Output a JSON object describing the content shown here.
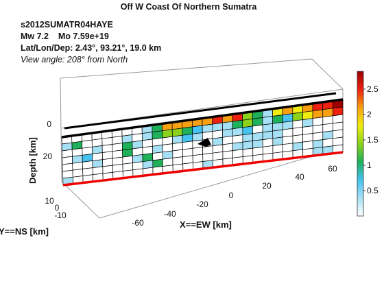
{
  "chart_data": {
    "type": "heatmap",
    "title": "Off W Coast Of Northern Sumatra",
    "event_lines": [
      "s2012SUMATR04HAYE",
      "Mw 7.2    Mo 7.59e+19",
      "Lat/Lon/Dep: 2.43°, 93.21°, 19.0 km",
      "View angle: 208° from North"
    ],
    "xlabel": "X==EW [km]",
    "ylabel": "Y==NS [km]",
    "zlabel": "Depth [km]",
    "xticks": [
      "-60",
      "-40",
      "-20",
      "0",
      "20",
      "40",
      "60"
    ],
    "yticks": [
      "10",
      "0",
      "-10"
    ],
    "zticks": [
      "0",
      "20"
    ],
    "colorbar_ticks": [
      "2.5",
      "2",
      "1.5",
      "1",
      "0.5"
    ],
    "colorbar_range": [
      0,
      2.85
    ],
    "colormap": [
      "#ffffff",
      "#a6e0f5",
      "#45c2f0",
      "#1fb05a",
      "#8cd21c",
      "#f0ec10",
      "#f7a010",
      "#ee2010",
      "#9b0000"
    ],
    "grid_cols": 28,
    "grid_rows": 7,
    "slip": [
      [
        0,
        0,
        0,
        0,
        0,
        0,
        0,
        0,
        0.4,
        1.1,
        2.0,
        2.2,
        2.2,
        2.3,
        2.3,
        2.4,
        2.2,
        2.4,
        1.6,
        1.1,
        0.4,
        1.7,
        2.0,
        1.9,
        2.2,
        2.4,
        2.5,
        2.7
      ],
      [
        0.3,
        1.0,
        0,
        0,
        0,
        0,
        0.4,
        0,
        0.3,
        1.2,
        1.4,
        1.6,
        1.2,
        0.6,
        0.4,
        0.5,
        0.3,
        1.2,
        1.6,
        1.2,
        0.4,
        1.0,
        0.6,
        1.5,
        1.7,
        2.1,
        2.3,
        2.4
      ],
      [
        0,
        0,
        0,
        0.3,
        0,
        0,
        1.0,
        0.3,
        0,
        0,
        0,
        0.3,
        0.6,
        0.3,
        0,
        0,
        0.3,
        0.3,
        0.6,
        0,
        0.5,
        0.3,
        0.3,
        0,
        0.3,
        0,
        0,
        0
      ],
      [
        0,
        0.3,
        0.6,
        0,
        0,
        0,
        1.0,
        0,
        0,
        0.3,
        0,
        0,
        0,
        0,
        0,
        0.3,
        0,
        0,
        0.3,
        0.5,
        0.3,
        0.3,
        0,
        0,
        0,
        0,
        0,
        0
      ],
      [
        0,
        0,
        0,
        0.3,
        0,
        0,
        0,
        0.5,
        1.2,
        0,
        0.3,
        0,
        0,
        0,
        0,
        0,
        0,
        0.3,
        0.3,
        0.5,
        0,
        0.3,
        0,
        0,
        0,
        0,
        0.3,
        0
      ],
      [
        0,
        0,
        0,
        0,
        0,
        0,
        0,
        0,
        0.3,
        1.2,
        0,
        0,
        0,
        0,
        0,
        0,
        0,
        0,
        0,
        0,
        0,
        0,
        0,
        0.3,
        0,
        0.3,
        0,
        0
      ],
      [
        0.3,
        0,
        0,
        0,
        0,
        0,
        0,
        0,
        0,
        0,
        0,
        0,
        0,
        0,
        0.3,
        0,
        0,
        0,
        0,
        0,
        0,
        0,
        0,
        0,
        0,
        0.3,
        0.3,
        0
      ]
    ]
  }
}
